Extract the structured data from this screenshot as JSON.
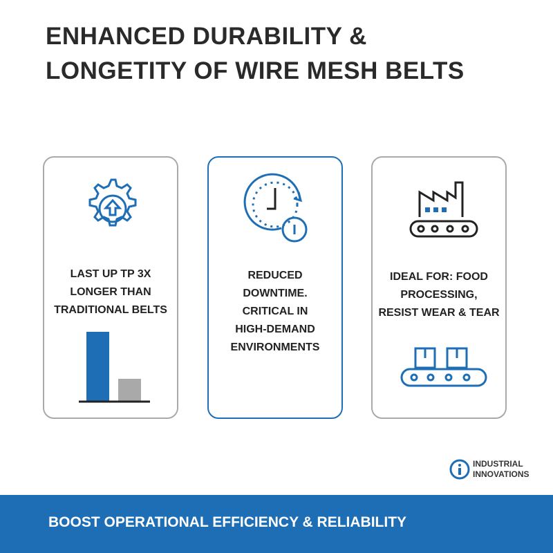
{
  "header": {
    "title_lines": [
      "ENHANCED DURABILITY &",
      "LONGETITY OF WIRE MESH BELTS"
    ]
  },
  "cards": [
    {
      "lines": [
        "LAST UP TP 3X",
        "LONGER THAN",
        "TRADITIONAL BELTS"
      ]
    },
    {
      "lines": [
        "REDUCED",
        "DOWNTIME.",
        "CRITICAL IN",
        "HIGH-DEMAND",
        "ENVIRONMENTS"
      ]
    },
    {
      "lines": [
        "IDEAL FOR: FOOD",
        "PROCESSING,",
        "RESIST WEAR & TEAR"
      ]
    }
  ],
  "logo": {
    "lines": [
      "INDUSTRIAL",
      "INNOVATIONS"
    ]
  },
  "footer": {
    "text": "BOOST OPERATIONAL EFFICIENCY & RELIABILITY"
  }
}
